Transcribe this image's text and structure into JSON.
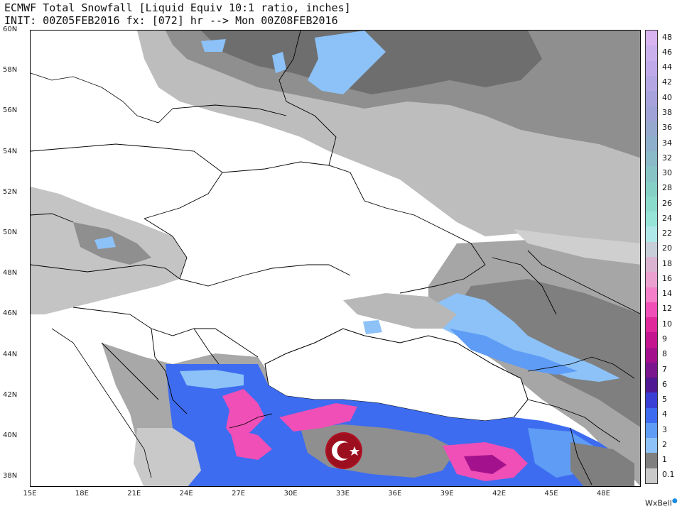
{
  "header": {
    "line1": "ECMWF Total Snowfall [Liquid Equiv 10:1 ratio, inches]",
    "line2": "INIT: 00Z05FEB2016 fx: [072] hr --> Mon 00Z08FEB2016"
  },
  "map": {
    "lat_labels": [
      "60N",
      "58N",
      "56N",
      "54N",
      "52N",
      "50N",
      "48N",
      "46N",
      "44N",
      "42N",
      "40N",
      "38N"
    ],
    "lon_labels": [
      "15E",
      "18E",
      "21E",
      "24E",
      "27E",
      "30E",
      "33E",
      "36E",
      "39E",
      "42E",
      "45E",
      "48E"
    ],
    "emblem": "turkey-crescent-star-icon",
    "emblem_colors": [
      "#b01224",
      "#ffffff"
    ]
  },
  "colorbar": {
    "labels": [
      "48",
      "46",
      "44",
      "42",
      "40",
      "38",
      "36",
      "34",
      "32",
      "30",
      "28",
      "26",
      "24",
      "22",
      "20",
      "18",
      "16",
      "14",
      "12",
      "10",
      "9",
      "8",
      "7",
      "6",
      "5",
      "4",
      "3",
      "2",
      "1",
      "0.1"
    ],
    "colors": [
      "#d8b4f0",
      "#cbb0ee",
      "#bfa9e8",
      "#b3a6e2",
      "#a8a2dc",
      "#9fa2d6",
      "#95a8ce",
      "#8eafcb",
      "#8ab9c8",
      "#86c4c6",
      "#85d0c6",
      "#8adbcc",
      "#96e3d8",
      "#aee8e8",
      "#c7ced8",
      "#d9b3d0",
      "#eba0cf",
      "#f57fc8",
      "#ef4fb6",
      "#e02a9c",
      "#c4168e",
      "#a3128c",
      "#7a168e",
      "#4f1a94",
      "#3a3fd6",
      "#3d6cf0",
      "#5e9cf5",
      "#8cc2f8",
      "#7f7f7f",
      "#c9c9c9"
    ]
  },
  "brand": "WxBell"
}
